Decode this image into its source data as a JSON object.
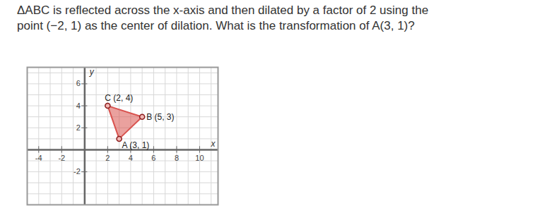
{
  "question": [
    "ΔABC is reflected across the x-axis and then dilated by a factor of 2 using the",
    "point (−2, 1) as the center of dilation. What is the transformation of A(3, 1)?"
  ],
  "chart_data": {
    "type": "polygon",
    "x_label": "x",
    "y_label": "y",
    "points": [
      {
        "label": "A (3, 1)",
        "x": 3,
        "y": 1
      },
      {
        "label": "B (5, 3)",
        "x": 5,
        "y": 3
      },
      {
        "label": "C (2, 4)",
        "x": 2,
        "y": 4
      }
    ],
    "color": "#d9534f",
    "marker": "circle",
    "xlim": [
      -5,
      11.6
    ],
    "xticks": [
      -4,
      -2,
      2,
      4,
      6,
      8,
      10
    ],
    "ylim": [
      -5,
      7.5
    ],
    "yticks": [
      -2,
      2,
      4,
      6
    ],
    "grid": true
  }
}
